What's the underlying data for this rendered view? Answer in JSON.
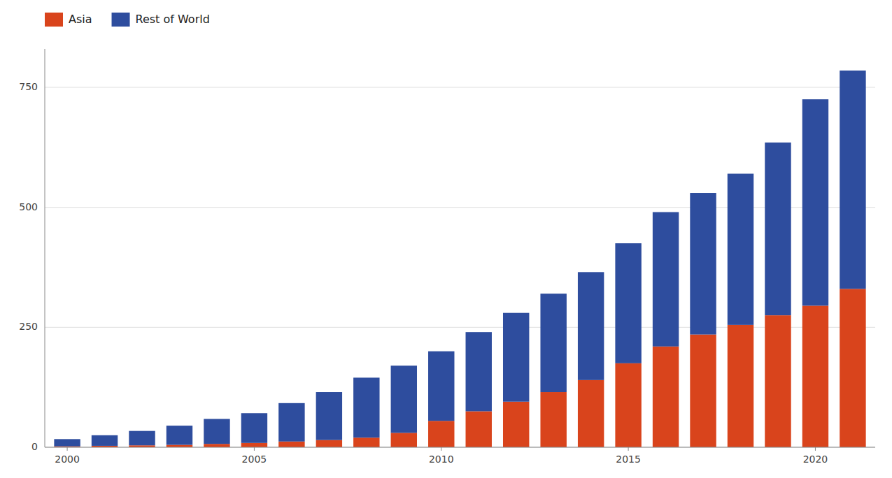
{
  "chart_data": {
    "type": "bar",
    "stacked": true,
    "x": [
      2000,
      2001,
      2002,
      2003,
      2004,
      2005,
      2006,
      2007,
      2008,
      2009,
      2010,
      2011,
      2012,
      2013,
      2014,
      2015,
      2016,
      2017,
      2018,
      2019,
      2020,
      2021
    ],
    "series": [
      {
        "name": "Asia",
        "color": "#d9441c",
        "values": [
          2,
          3,
          4,
          5,
          7,
          9,
          12,
          15,
          20,
          30,
          55,
          75,
          95,
          115,
          140,
          175,
          210,
          235,
          255,
          275,
          295,
          330
        ]
      },
      {
        "name": "Rest of World",
        "color": "#2e4d9e",
        "values": [
          15,
          22,
          30,
          40,
          52,
          62,
          80,
          100,
          125,
          140,
          145,
          165,
          185,
          205,
          225,
          250,
          280,
          295,
          315,
          360,
          430,
          455
        ]
      }
    ],
    "xlim": [
      1999.4,
      2021.6
    ],
    "xticks": [
      2000,
      2005,
      2010,
      2015,
      2020
    ],
    "ylim": [
      0,
      830
    ],
    "yticks": [
      0,
      250,
      500,
      750
    ],
    "grid": true,
    "legend": "upper left"
  }
}
